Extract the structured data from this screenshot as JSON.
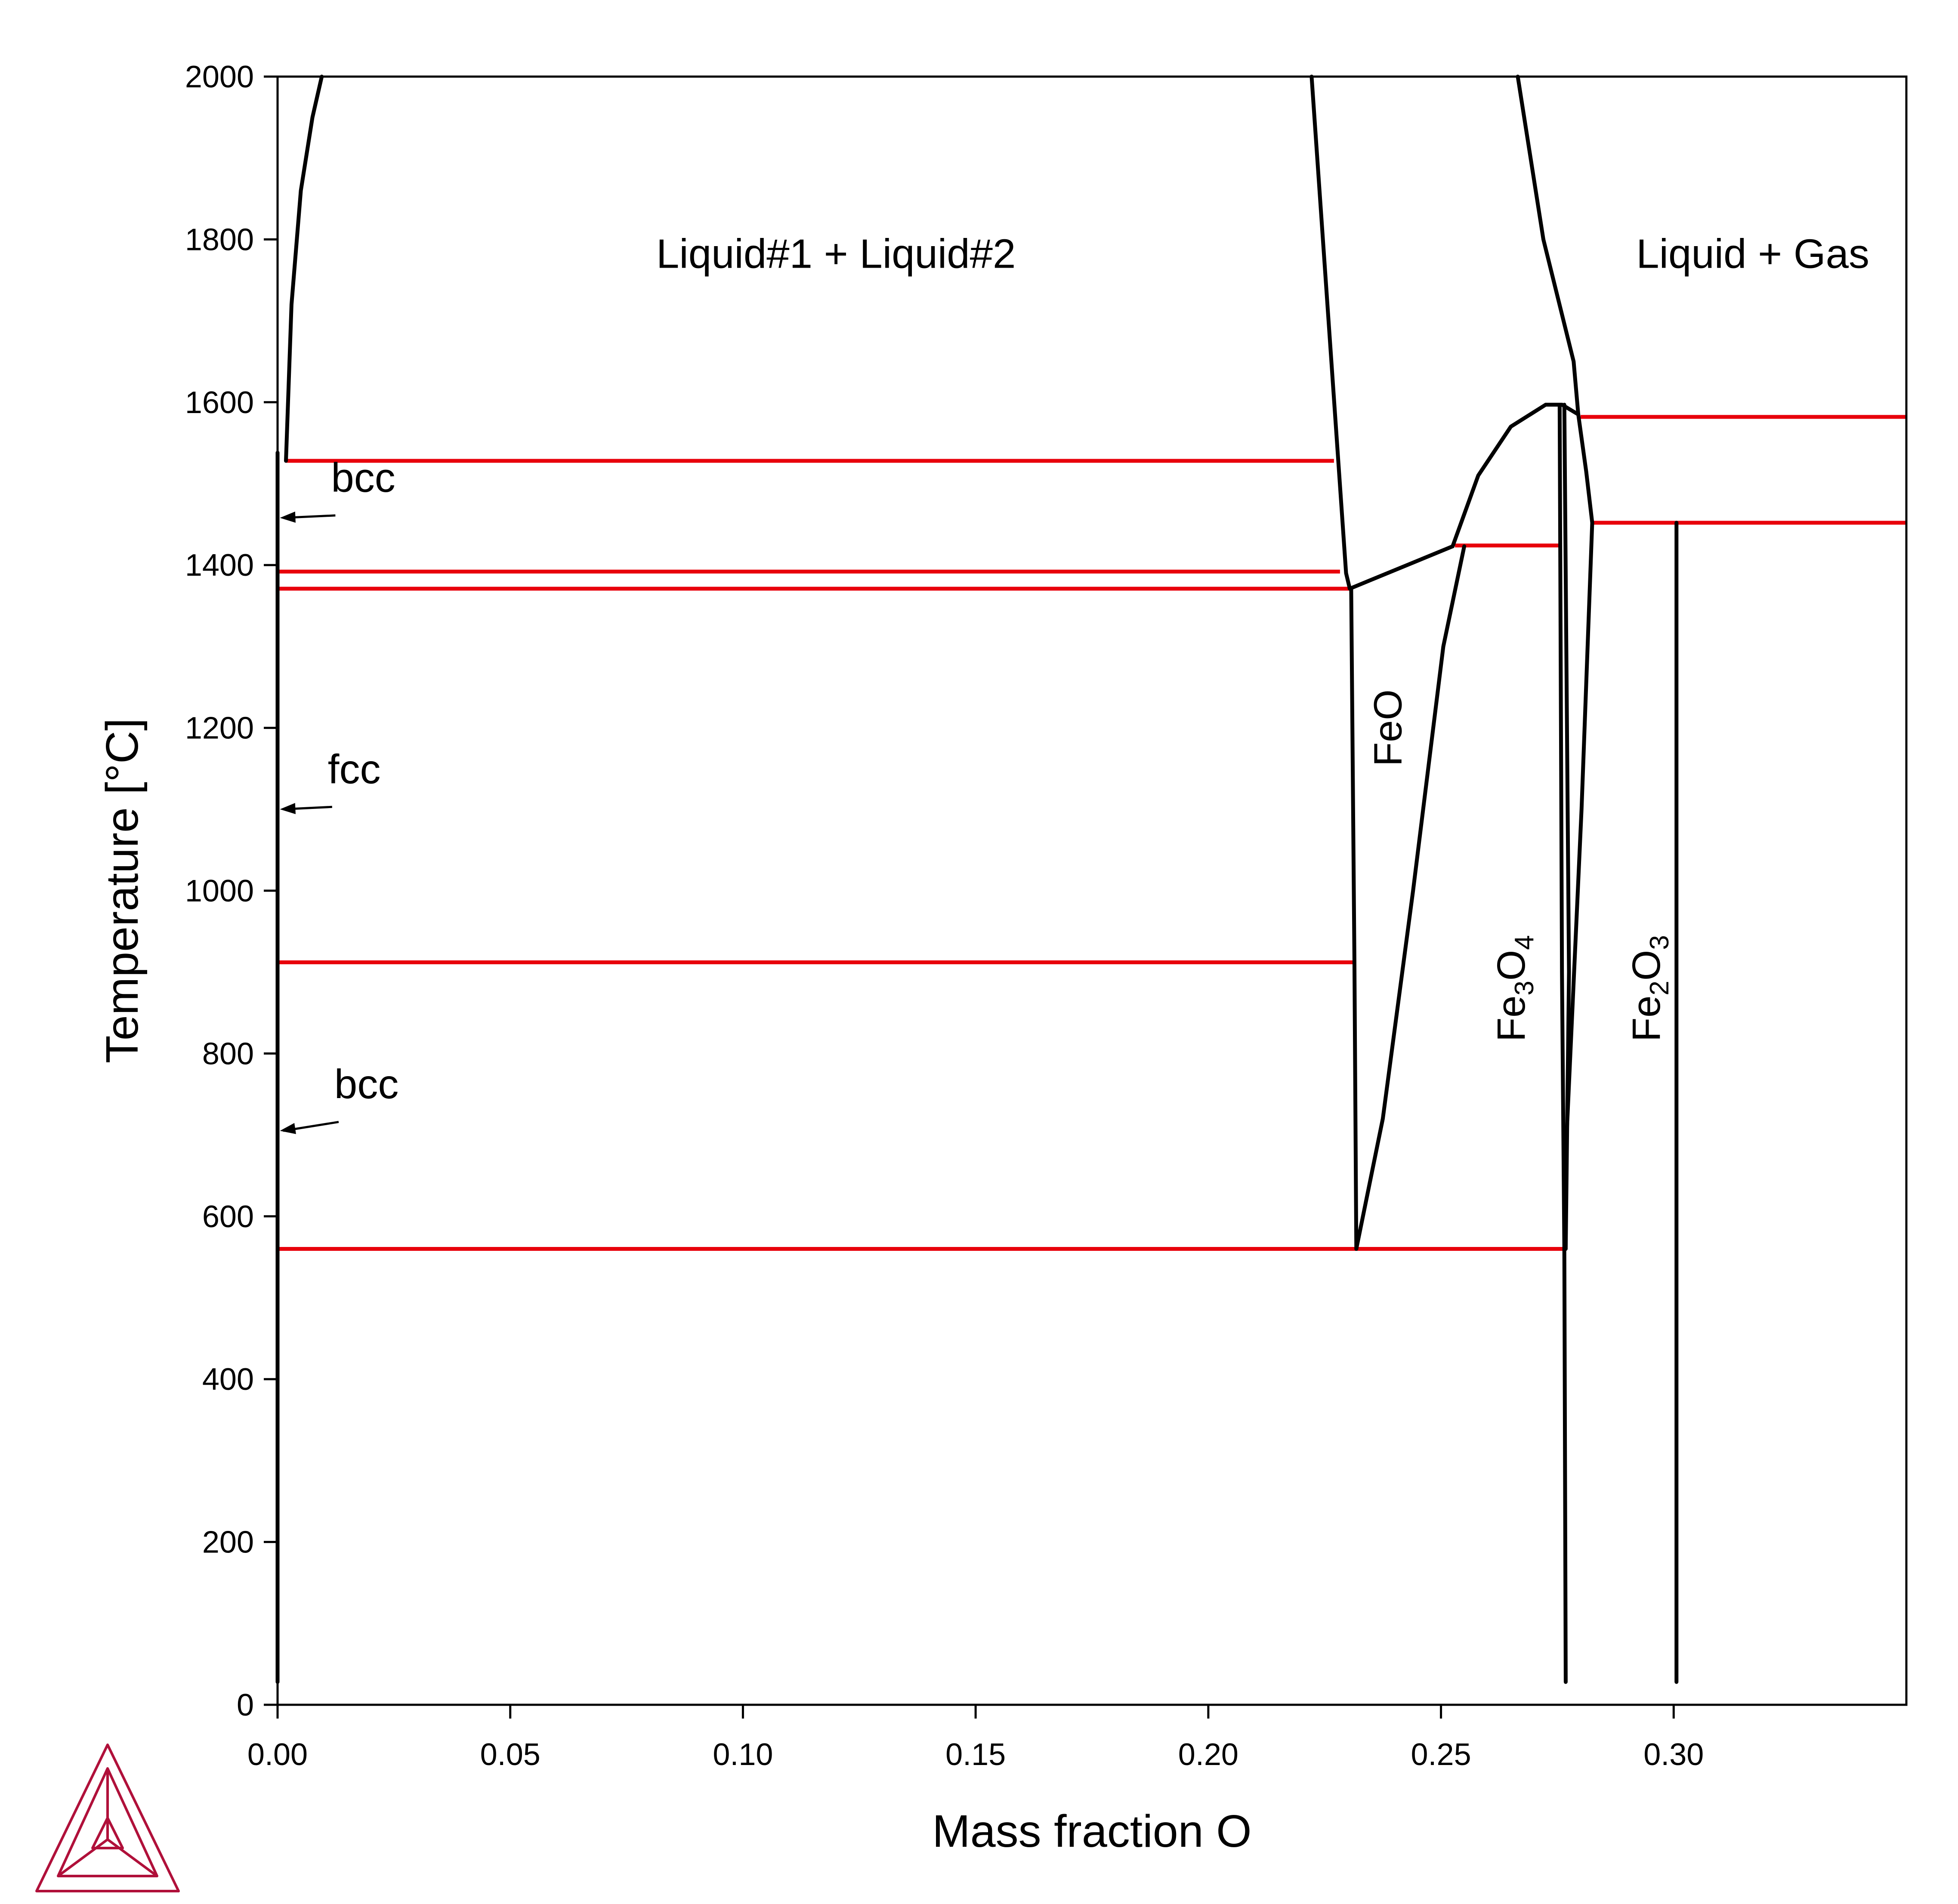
{
  "chart_data": {
    "type": "line",
    "title": "",
    "xlabel": "Mass fraction O",
    "ylabel": "Temperature [°C]",
    "xlim": [
      0,
      0.35
    ],
    "ylim": [
      0,
      2000
    ],
    "grid": false,
    "x_ticks": [
      "0.00",
      "0.05",
      "0.10",
      "0.15",
      "0.20",
      "0.25",
      "0.30"
    ],
    "x_tick_values": [
      0,
      0.05,
      0.1,
      0.15,
      0.2,
      0.25,
      0.3
    ],
    "y_ticks": [
      "0",
      "200",
      "400",
      "600",
      "800",
      "1000",
      "1200",
      "1400",
      "1600",
      "1800",
      "2000"
    ],
    "y_tick_values": [
      0,
      200,
      400,
      600,
      800,
      1000,
      1200,
      1400,
      1600,
      1800,
      2000
    ],
    "colors": {
      "phase_boundary": "#000000",
      "invariant_line": "#e8000b",
      "logo": "#b0103a"
    },
    "phase_boundaries": [
      {
        "points": [
          [
            0.0,
            28
          ],
          [
            0.0,
            1538
          ]
        ]
      },
      {
        "points": [
          [
            0.0018,
            1528
          ],
          [
            0.003,
            1720
          ],
          [
            0.005,
            1860
          ],
          [
            0.0075,
            1950
          ],
          [
            0.0095,
            2000
          ]
        ]
      },
      {
        "points": [
          [
            0.2222,
            2000
          ],
          [
            0.2296,
            1390
          ],
          [
            0.2304,
            1371
          ]
        ]
      },
      {
        "points": [
          [
            0.2304,
            1371
          ],
          [
            0.2525,
            1423
          ]
        ]
      },
      {
        "points": [
          [
            0.2307,
            1371
          ],
          [
            0.2314,
            914
          ],
          [
            0.2318,
            560
          ]
        ]
      },
      {
        "points": [
          [
            0.2318,
            560
          ],
          [
            0.2375,
            720
          ],
          [
            0.244,
            1000
          ],
          [
            0.2505,
            1300
          ],
          [
            0.255,
            1423
          ]
        ]
      },
      {
        "points": [
          [
            0.2525,
            1423
          ],
          [
            0.258,
            1510
          ],
          [
            0.265,
            1570
          ],
          [
            0.2725,
            1597
          ],
          [
            0.276,
            1597
          ],
          [
            0.2795,
            1585
          ]
        ]
      },
      {
        "points": [
          [
            0.2795,
            1585
          ],
          [
            0.2785,
            1650
          ],
          [
            0.272,
            1800
          ],
          [
            0.2665,
            2000
          ]
        ]
      },
      {
        "points": [
          [
            0.2755,
            1597
          ],
          [
            0.276,
            900
          ],
          [
            0.2765,
            560
          ],
          [
            0.2768,
            28
          ]
        ]
      },
      {
        "points": [
          [
            0.2765,
            1597
          ],
          [
            0.2775,
            900
          ],
          [
            0.2768,
            560
          ]
        ]
      },
      {
        "points": [
          [
            0.2795,
            1585
          ],
          [
            0.2812,
            1515
          ],
          [
            0.2825,
            1452
          ]
        ]
      },
      {
        "points": [
          [
            0.2825,
            1452
          ],
          [
            0.2802,
            1100
          ],
          [
            0.277,
            700
          ]
        ]
      },
      {
        "points": [
          [
            0.3006,
            1452
          ],
          [
            0.3006,
            28
          ]
        ]
      }
    ],
    "invariant_lines": [
      {
        "x": [
          0.0018,
          0.227
        ],
        "y": 1528
      },
      {
        "x": [
          0.0,
          0.2283
        ],
        "y": 1392
      },
      {
        "x": [
          0.0,
          0.231
        ],
        "y": 1371
      },
      {
        "x": [
          0.0,
          0.231
        ],
        "y": 912
      },
      {
        "x": [
          0.0,
          0.2765
        ],
        "y": 560
      },
      {
        "x": [
          0.253,
          0.2755
        ],
        "y": 1424
      },
      {
        "x": [
          0.28,
          0.35
        ],
        "y": 1582
      },
      {
        "x": [
          0.2825,
          0.35
        ],
        "y": 1452
      }
    ],
    "annotations": [
      {
        "text": "Liquid#1 + Liquid#2",
        "x": 0.12,
        "y": 1765,
        "kind": "region"
      },
      {
        "text": "Liquid + Gas",
        "x": 0.317,
        "y": 1765,
        "kind": "region"
      },
      {
        "text": "bcc",
        "x": 0.0115,
        "y": 1490,
        "kind": "pointer",
        "target": [
          0.0005,
          1458
        ]
      },
      {
        "text": "fcc",
        "x": 0.0108,
        "y": 1132,
        "kind": "pointer",
        "target": [
          0.0005,
          1100
        ]
      },
      {
        "text": "bcc",
        "x": 0.0122,
        "y": 745,
        "kind": "pointer",
        "target": [
          0.0005,
          705
        ]
      },
      {
        "text": "FeO",
        "x": 0.2415,
        "y": 1200,
        "kind": "vertical"
      },
      {
        "text": "Fe",
        "sub1": "3",
        "mid": "O",
        "sub2": "4",
        "x": 0.268,
        "y": 880,
        "kind": "vertical-formula"
      },
      {
        "text": "Fe",
        "sub1": "2",
        "mid": "O",
        "sub2": "3",
        "x": 0.297,
        "y": 880,
        "kind": "vertical-formula"
      }
    ]
  }
}
